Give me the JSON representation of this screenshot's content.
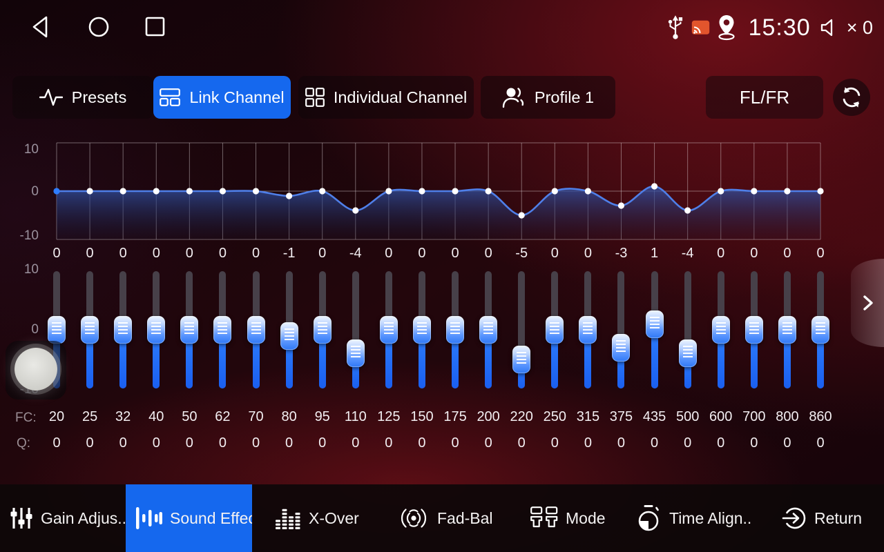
{
  "status_bar": {
    "time": "15:30",
    "volume_text": "× 0",
    "icons": [
      "usb-icon",
      "cast-icon",
      "location-icon",
      "volume-muted-icon"
    ],
    "nav_icons": [
      "back-icon",
      "home-icon",
      "recents-icon"
    ]
  },
  "tab_bar": {
    "tabs": [
      {
        "id": "presets",
        "label": "Presets",
        "icon": "waveform-icon",
        "active": false
      },
      {
        "id": "link-channel",
        "label": "Link Channel",
        "icon": "link-layout-icon",
        "active": true
      },
      {
        "id": "individual-channel",
        "label": "Individual Channel",
        "icon": "grid-icon",
        "active": false
      },
      {
        "id": "profile",
        "label": "Profile 1",
        "icon": "user-icon",
        "active": false
      }
    ],
    "channel_button": "FL/FR",
    "refresh_icon": "refresh-icon"
  },
  "chart_data": {
    "type": "line",
    "title": "",
    "x": [
      20,
      25,
      32,
      40,
      50,
      62,
      70,
      80,
      95,
      110,
      125,
      150,
      175,
      200,
      220,
      250,
      315,
      375,
      435,
      500,
      600,
      700,
      800,
      860
    ],
    "values": [
      0,
      0,
      0,
      0,
      0,
      0,
      0,
      -1,
      0,
      -4,
      0,
      0,
      0,
      0,
      -5,
      0,
      0,
      -3,
      1,
      -4,
      0,
      0,
      0,
      0
    ],
    "ylim": [
      -10,
      10
    ],
    "yticks": [
      10,
      0,
      -10
    ],
    "grid": true,
    "legend": false
  },
  "equalizer": {
    "y_ticks": [
      "10",
      "0",
      "-10"
    ],
    "fc_label": "FC:",
    "q_label": "Q:",
    "bands": [
      {
        "fc": "20",
        "gain": 0,
        "q": "0"
      },
      {
        "fc": "25",
        "gain": 0,
        "q": "0"
      },
      {
        "fc": "32",
        "gain": 0,
        "q": "0"
      },
      {
        "fc": "40",
        "gain": 0,
        "q": "0"
      },
      {
        "fc": "50",
        "gain": 0,
        "q": "0"
      },
      {
        "fc": "62",
        "gain": 0,
        "q": "0"
      },
      {
        "fc": "70",
        "gain": 0,
        "q": "0"
      },
      {
        "fc": "80",
        "gain": -1,
        "q": "0"
      },
      {
        "fc": "95",
        "gain": 0,
        "q": "0"
      },
      {
        "fc": "110",
        "gain": -4,
        "q": "0"
      },
      {
        "fc": "125",
        "gain": 0,
        "q": "0"
      },
      {
        "fc": "150",
        "gain": 0,
        "q": "0"
      },
      {
        "fc": "175",
        "gain": 0,
        "q": "0"
      },
      {
        "fc": "200",
        "gain": 0,
        "q": "0"
      },
      {
        "fc": "220",
        "gain": -5,
        "q": "0"
      },
      {
        "fc": "250",
        "gain": 0,
        "q": "0"
      },
      {
        "fc": "315",
        "gain": 0,
        "q": "0"
      },
      {
        "fc": "375",
        "gain": -3,
        "q": "0"
      },
      {
        "fc": "435",
        "gain": 1,
        "q": "0"
      },
      {
        "fc": "500",
        "gain": -4,
        "q": "0"
      },
      {
        "fc": "600",
        "gain": 0,
        "q": "0"
      },
      {
        "fc": "700",
        "gain": 0,
        "q": "0"
      },
      {
        "fc": "800",
        "gain": 0,
        "q": "0"
      },
      {
        "fc": "860",
        "gain": 0,
        "q": "0"
      }
    ]
  },
  "bottom_nav": {
    "items": [
      {
        "id": "gain",
        "label": "Gain Adjus..",
        "icon": "mixer-icon",
        "active": false
      },
      {
        "id": "sound-effect",
        "label": "Sound Effect",
        "icon": "sound-bars-icon",
        "active": true
      },
      {
        "id": "x-over",
        "label": "X-Over",
        "icon": "crossover-icon",
        "active": false
      },
      {
        "id": "fad-bal",
        "label": "Fad-Bal",
        "icon": "fader-balance-icon",
        "active": false
      },
      {
        "id": "mode",
        "label": "Mode",
        "icon": "mode-icon",
        "active": false
      },
      {
        "id": "time-align",
        "label": "Time Align..",
        "icon": "stopwatch-icon",
        "active": false
      },
      {
        "id": "return",
        "label": "Return",
        "icon": "return-icon",
        "active": false
      }
    ]
  },
  "misc": {
    "next_page_icon": "chevron-right-icon",
    "knob_icon": "volume-knob"
  },
  "colors": {
    "accent_blue": "#1568ee",
    "slider_blue": "#1f6cf2",
    "curve_blue": "#4f7fe8",
    "selected_dot": "#2e7dff",
    "cast_orange": "#e2552d"
  }
}
